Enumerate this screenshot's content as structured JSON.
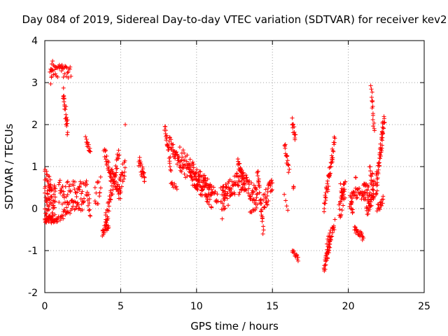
{
  "chart_data": {
    "type": "scatter",
    "title": "Day 084 of 2019, Sidereal Day-to-day VTEC variation (SDTVAR) for receiver kev2",
    "xlabel": "GPS time / hours",
    "ylabel": "SDTVAR / TECUs",
    "xlim": [
      0,
      25
    ],
    "ylim": [
      -2,
      4
    ],
    "xticks": [
      "0",
      "5",
      "10",
      "15",
      "20",
      "25"
    ],
    "yticks": [
      "-2",
      "-1",
      "0",
      "1",
      "2",
      "3",
      "4"
    ],
    "grid": true,
    "marker": "+",
    "color": "#ff0000",
    "series": [
      {
        "name": "SDTVAR",
        "segments": [
          {
            "x0": 0.0,
            "x1": 0.7,
            "y0": 0.1,
            "y1": 0.1,
            "spread": 0.45,
            "n": 70
          },
          {
            "x0": 0.0,
            "x1": 0.9,
            "y0": -0.25,
            "y1": -0.25,
            "spread": 0.08,
            "n": 30
          },
          {
            "x0": 0.0,
            "x1": 0.4,
            "y0": 0.85,
            "y1": 0.55,
            "spread": 0.15,
            "n": 18
          },
          {
            "x0": 0.35,
            "x1": 1.7,
            "y0": 3.3,
            "y1": 3.25,
            "spread": 0.15,
            "n": 40
          },
          {
            "x0": 0.4,
            "x1": 0.5,
            "y0": 3.0,
            "y1": 3.5,
            "spread": 0.05,
            "n": 6
          },
          {
            "x0": 1.2,
            "x1": 1.5,
            "y0": 2.8,
            "y1": 1.9,
            "spread": 0.2,
            "n": 24
          },
          {
            "x0": 0.9,
            "x1": 2.6,
            "y0": 0.4,
            "y1": 0.3,
            "spread": 0.35,
            "n": 60
          },
          {
            "x0": 1.0,
            "x1": 1.5,
            "y0": -0.2,
            "y1": -0.05,
            "spread": 0.1,
            "n": 14
          },
          {
            "x0": 1.5,
            "x1": 2.6,
            "y0": 0.0,
            "y1": 0.1,
            "spread": 0.15,
            "n": 20
          },
          {
            "x0": 2.7,
            "x1": 3.0,
            "y0": 1.7,
            "y1": 1.3,
            "spread": 0.08,
            "n": 14
          },
          {
            "x0": 2.7,
            "x1": 3.0,
            "y0": 0.6,
            "y1": -0.1,
            "spread": 0.2,
            "n": 16
          },
          {
            "x0": 3.3,
            "x1": 3.7,
            "y0": 0.3,
            "y1": 0.5,
            "spread": 0.3,
            "n": 14
          },
          {
            "x0": 3.8,
            "x1": 4.2,
            "y0": -0.6,
            "y1": -0.3,
            "spread": 0.15,
            "n": 24
          },
          {
            "x0": 3.9,
            "x1": 4.4,
            "y0": 1.4,
            "y1": 0.7,
            "spread": 0.15,
            "n": 22
          },
          {
            "x0": 4.0,
            "x1": 4.9,
            "y0": -0.3,
            "y1": 1.3,
            "spread": 0.18,
            "n": 45
          },
          {
            "x0": 4.3,
            "x1": 5.0,
            "y0": 0.9,
            "y1": 0.3,
            "spread": 0.15,
            "n": 30
          },
          {
            "x0": 4.9,
            "x1": 5.3,
            "y0": 0.5,
            "y1": 1.0,
            "spread": 0.25,
            "n": 20
          },
          {
            "x0": 5.3,
            "x1": 5.3,
            "y0": 2.0,
            "y1": 2.0,
            "spread": 0.0,
            "n": 1
          },
          {
            "x0": 6.2,
            "x1": 6.6,
            "y0": 1.15,
            "y1": 0.65,
            "spread": 0.15,
            "n": 22
          },
          {
            "x0": 7.9,
            "x1": 8.3,
            "y0": 2.0,
            "y1": 1.0,
            "spread": 0.15,
            "n": 24
          },
          {
            "x0": 8.2,
            "x1": 8.9,
            "y0": 1.6,
            "y1": 1.05,
            "spread": 0.15,
            "n": 30
          },
          {
            "x0": 8.3,
            "x1": 8.7,
            "y0": 0.6,
            "y1": 0.5,
            "spread": 0.05,
            "n": 10
          },
          {
            "x0": 8.9,
            "x1": 11.0,
            "y0": 1.2,
            "y1": 0.3,
            "spread": 0.3,
            "n": 110
          },
          {
            "x0": 9.5,
            "x1": 11.4,
            "y0": 0.8,
            "y1": 0.25,
            "spread": 0.2,
            "n": 60
          },
          {
            "x0": 11.6,
            "x1": 13.0,
            "y0": 0.2,
            "y1": 0.7,
            "spread": 0.3,
            "n": 70
          },
          {
            "x0": 11.7,
            "x1": 11.9,
            "y0": -0.1,
            "y1": 0.6,
            "spread": 0.15,
            "n": 10
          },
          {
            "x0": 12.7,
            "x1": 13.2,
            "y0": 1.05,
            "y1": 0.6,
            "spread": 0.15,
            "n": 24
          },
          {
            "x0": 13.0,
            "x1": 14.0,
            "y0": 0.7,
            "y1": 0.2,
            "spread": 0.25,
            "n": 50
          },
          {
            "x0": 13.5,
            "x1": 14.0,
            "y0": -0.05,
            "y1": 0.05,
            "spread": 0.08,
            "n": 8
          },
          {
            "x0": 14.0,
            "x1": 14.4,
            "y0": 0.9,
            "y1": -0.5,
            "spread": 0.15,
            "n": 30
          },
          {
            "x0": 14.4,
            "x1": 15.0,
            "y0": 0.1,
            "y1": 0.6,
            "spread": 0.25,
            "n": 30
          },
          {
            "x0": 15.8,
            "x1": 16.1,
            "y0": 1.5,
            "y1": 0.9,
            "spread": 0.12,
            "n": 16
          },
          {
            "x0": 15.8,
            "x1": 16.0,
            "y0": 0.3,
            "y1": -0.05,
            "spread": 0.05,
            "n": 4
          },
          {
            "x0": 16.3,
            "x1": 16.5,
            "y0": 2.05,
            "y1": 1.7,
            "spread": 0.12,
            "n": 14
          },
          {
            "x0": 16.4,
            "x1": 16.4,
            "y0": 0.55,
            "y1": 0.5,
            "spread": 0.03,
            "n": 3
          },
          {
            "x0": 16.3,
            "x1": 16.7,
            "y0": -1.0,
            "y1": -1.2,
            "spread": 0.06,
            "n": 14
          },
          {
            "x0": 18.4,
            "x1": 19.1,
            "y0": 0.0,
            "y1": 1.6,
            "spread": 0.15,
            "n": 45
          },
          {
            "x0": 18.4,
            "x1": 18.8,
            "y0": -1.4,
            "y1": -0.8,
            "spread": 0.15,
            "n": 30
          },
          {
            "x0": 18.6,
            "x1": 19.1,
            "y0": -0.9,
            "y1": -0.4,
            "spread": 0.15,
            "n": 26
          },
          {
            "x0": 19.4,
            "x1": 19.8,
            "y0": -0.1,
            "y1": 0.5,
            "spread": 0.25,
            "n": 30
          },
          {
            "x0": 19.5,
            "x1": 19.7,
            "y0": 0.5,
            "y1": 0.3,
            "spread": 0.1,
            "n": 8
          },
          {
            "x0": 20.1,
            "x1": 20.3,
            "y0": 0.2,
            "y1": -0.1,
            "spread": 0.2,
            "n": 12
          },
          {
            "x0": 20.2,
            "x1": 21.1,
            "y0": 0.4,
            "y1": 0.3,
            "spread": 0.15,
            "n": 30
          },
          {
            "x0": 20.5,
            "x1": 20.5,
            "y0": 0.75,
            "y1": 0.75,
            "spread": 0.03,
            "n": 2
          },
          {
            "x0": 20.4,
            "x1": 21.0,
            "y0": -0.5,
            "y1": -0.7,
            "spread": 0.08,
            "n": 22
          },
          {
            "x0": 21.0,
            "x1": 21.4,
            "y0": 0.5,
            "y1": 0.3,
            "spread": 0.2,
            "n": 20
          },
          {
            "x0": 21.2,
            "x1": 21.7,
            "y0": 0.0,
            "y1": 0.4,
            "spread": 0.2,
            "n": 30
          },
          {
            "x0": 21.4,
            "x1": 21.7,
            "y0": 0.9,
            "y1": 0.5,
            "spread": 0.2,
            "n": 16
          },
          {
            "x0": 21.5,
            "x1": 21.7,
            "y0": 2.9,
            "y1": 1.9,
            "spread": 0.15,
            "n": 16
          },
          {
            "x0": 21.8,
            "x1": 22.3,
            "y0": 0.4,
            "y1": 1.9,
            "spread": 0.25,
            "n": 45
          },
          {
            "x0": 21.9,
            "x1": 22.3,
            "y0": 0.0,
            "y1": 0.2,
            "spread": 0.1,
            "n": 16
          },
          {
            "x0": 22.2,
            "x1": 22.4,
            "y0": 1.8,
            "y1": 2.2,
            "spread": 0.15,
            "n": 12
          }
        ]
      }
    ]
  }
}
